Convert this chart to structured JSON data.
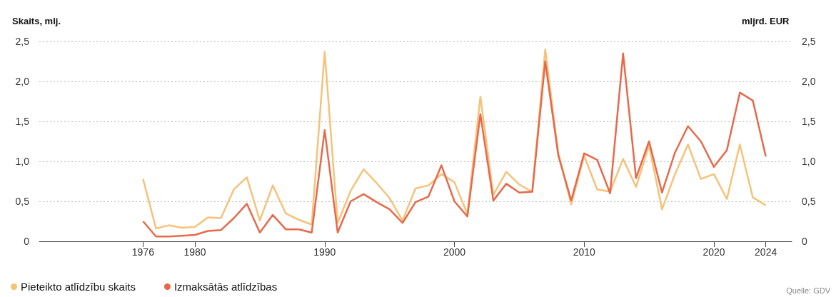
{
  "chart_data": {
    "type": "line",
    "ylabel": "Skaits, mlj.",
    "y2label": "mljrd. EUR",
    "x": [
      1976,
      1977,
      1978,
      1979,
      1980,
      1981,
      1982,
      1983,
      1984,
      1985,
      1986,
      1987,
      1988,
      1989,
      1990,
      1991,
      1992,
      1993,
      1994,
      1995,
      1996,
      1997,
      1998,
      1999,
      2000,
      2001,
      2002,
      2003,
      2004,
      2005,
      2006,
      2007,
      2008,
      2009,
      2010,
      2011,
      2012,
      2013,
      2014,
      2015,
      2016,
      2017,
      2018,
      2019,
      2020,
      2021,
      2022,
      2023,
      2024
    ],
    "series": [
      {
        "name": "Pieteikto atlīdzību skaits",
        "color": "#f6c27a",
        "values": [
          0.78,
          0.16,
          0.2,
          0.17,
          0.18,
          0.3,
          0.29,
          0.65,
          0.8,
          0.26,
          0.7,
          0.35,
          0.27,
          0.21,
          2.37,
          0.23,
          0.63,
          0.9,
          0.73,
          0.54,
          0.26,
          0.66,
          0.7,
          0.84,
          0.74,
          0.34,
          1.81,
          0.58,
          0.87,
          0.71,
          0.62,
          2.4,
          1.11,
          0.46,
          1.07,
          0.65,
          0.62,
          1.03,
          0.68,
          1.2,
          0.4,
          0.84,
          1.21,
          0.78,
          0.84,
          0.53,
          1.21,
          0.55,
          0.45
        ]
      },
      {
        "name": "Izmaksātās atlīdzības",
        "color": "#e8694a",
        "axis": "y2",
        "values": [
          0.25,
          0.06,
          0.06,
          0.07,
          0.08,
          0.13,
          0.14,
          0.29,
          0.47,
          0.11,
          0.33,
          0.15,
          0.15,
          0.11,
          1.39,
          0.11,
          0.5,
          0.59,
          0.49,
          0.4,
          0.23,
          0.49,
          0.56,
          0.95,
          0.5,
          0.31,
          1.59,
          0.51,
          0.72,
          0.61,
          0.62,
          2.25,
          1.08,
          0.51,
          1.1,
          1.02,
          0.6,
          2.35,
          0.79,
          1.25,
          0.61,
          1.11,
          1.44,
          1.25,
          0.93,
          1.14,
          1.86,
          1.76,
          1.06
        ]
      }
    ],
    "xlim": [
      1968,
      2026
    ],
    "xticks": [
      1976,
      1980,
      1990,
      2000,
      2010,
      2020,
      2024
    ],
    "ylim": [
      0,
      2.5
    ],
    "yticks": [
      0,
      {
        "value": 0.5,
        "label": "0,5"
      },
      {
        "value": 1,
        "label": "1,0"
      },
      {
        "value": 1.5,
        "label": "1,5"
      },
      {
        "value": 2,
        "label": "2,0"
      },
      {
        "value": 2.5,
        "label": "2,5"
      }
    ],
    "y2lim": [
      0,
      2.5
    ],
    "y2ticks": [
      0,
      {
        "value": 0.5,
        "label": "0,5"
      },
      {
        "value": 1,
        "label": "1,0"
      },
      {
        "value": 1.5,
        "label": "1,5"
      },
      {
        "value": 2,
        "label": "2,0"
      },
      {
        "value": 2.5,
        "label": "2,5"
      }
    ],
    "grid": "y",
    "legend": "bottom left",
    "marker": "none",
    "line_style": "solid",
    "annotations": [
      "Quelle: GDV"
    ]
  }
}
